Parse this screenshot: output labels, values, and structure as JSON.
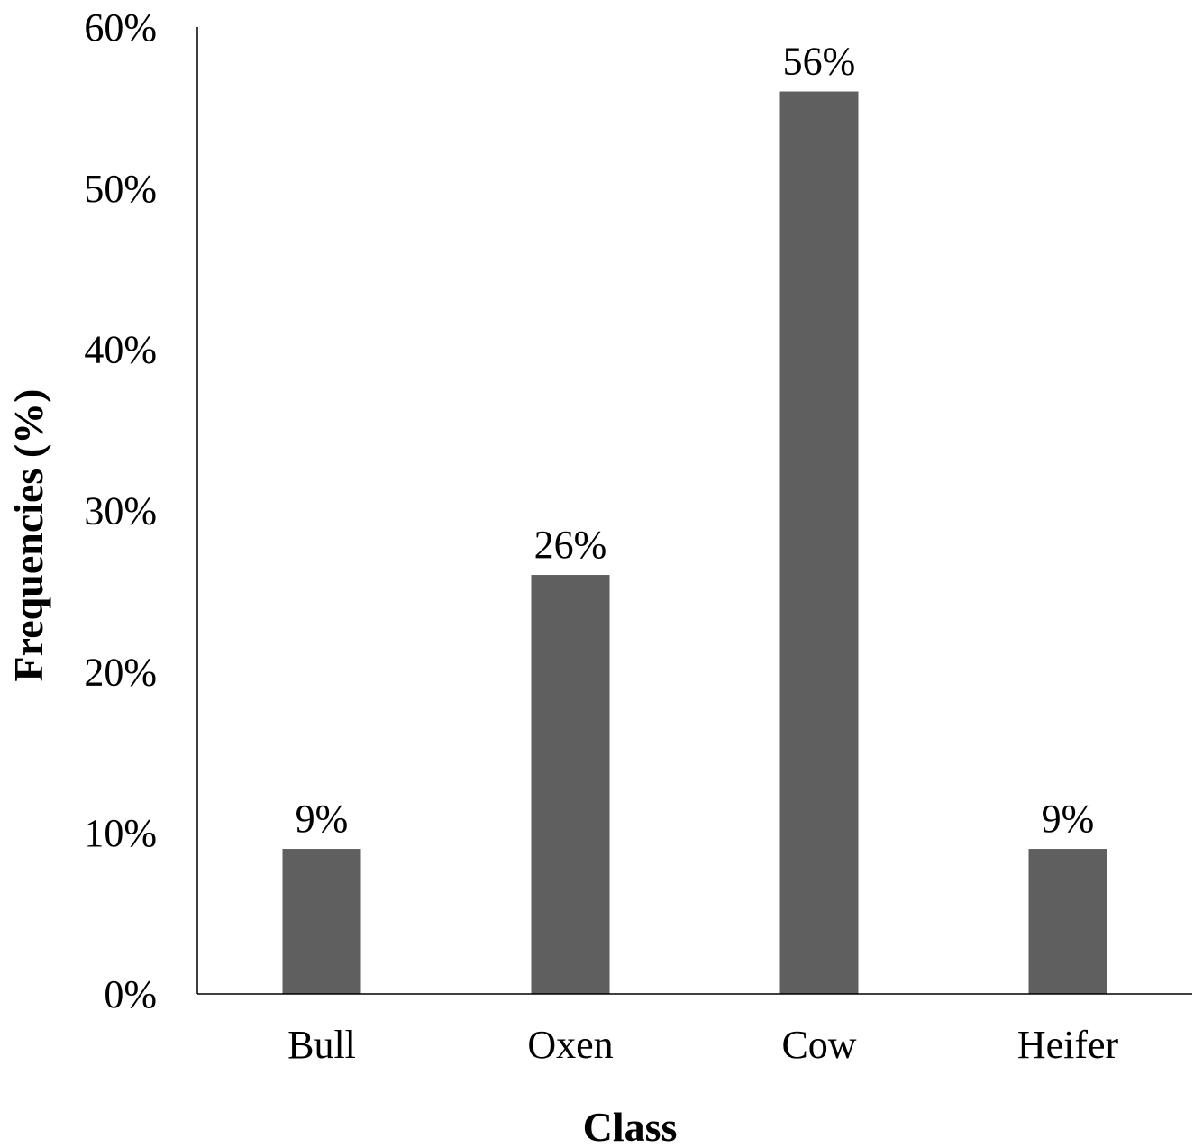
{
  "chart_data": {
    "type": "bar",
    "title": "",
    "xlabel": "Class",
    "ylabel": "Frequencies (%)",
    "categories": [
      "Bull",
      "Oxen",
      "Cow",
      "Heifer"
    ],
    "values": [
      9,
      26,
      56,
      9
    ],
    "data_labels": [
      "9%",
      "26%",
      "56%",
      "9%"
    ],
    "ylim": [
      0,
      60
    ],
    "yticks": [
      0,
      10,
      20,
      30,
      40,
      50,
      60
    ],
    "ytick_labels": [
      "0%",
      "10%",
      "20%",
      "30%",
      "40%",
      "50%",
      "60%"
    ],
    "grid": false,
    "legend": "none",
    "bar_color": "#5f5f5f"
  }
}
